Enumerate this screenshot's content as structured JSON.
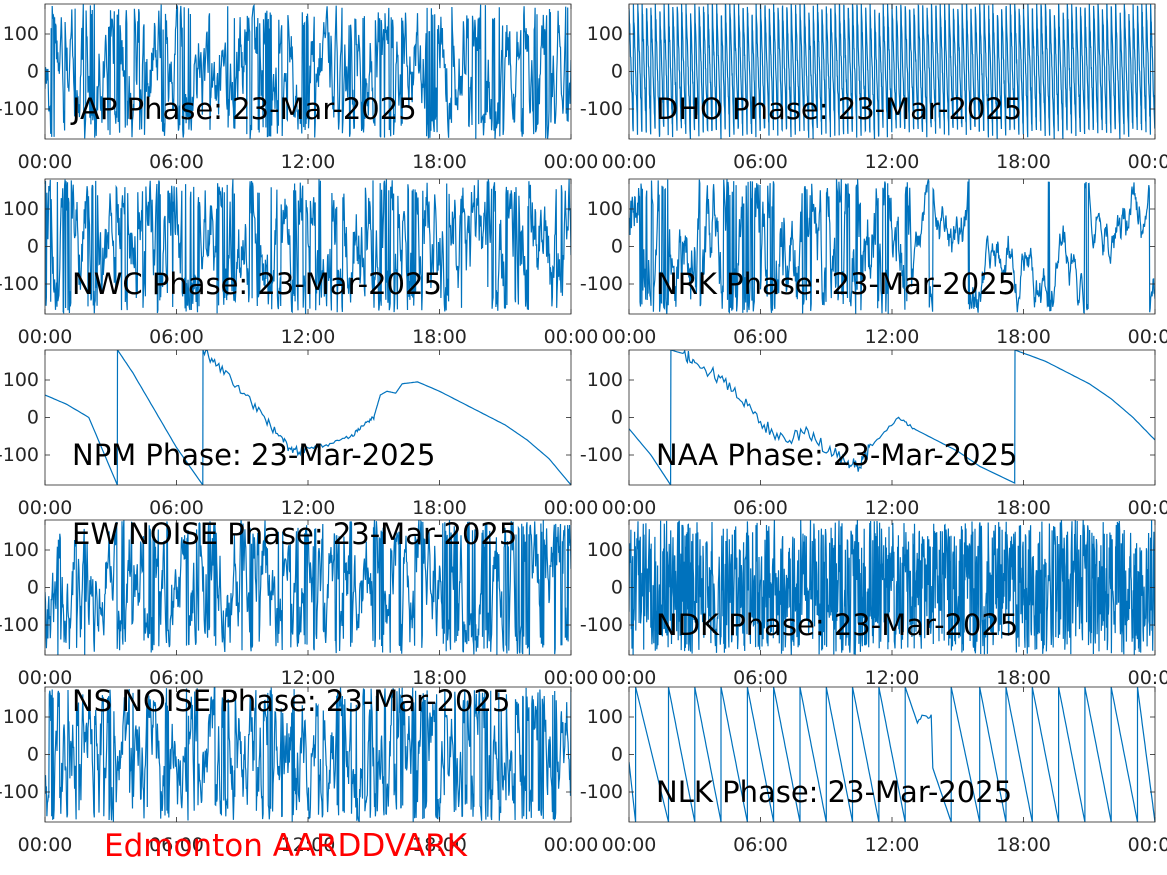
{
  "figure": {
    "footer_text": "Edmonton AARDDVARK",
    "footer_color": "#ff0000",
    "line_color": "#0072bd"
  },
  "chart_data": [
    {
      "type": "line",
      "title": "JAP Phase: 23-Mar-2025",
      "xlabel": "",
      "ylabel": "",
      "x_tick_labels": [
        "00:00",
        "06:00",
        "12:00",
        "18:00",
        "00:00"
      ],
      "xlim": [
        "00:00",
        "24:00"
      ],
      "y_ticks": [
        100,
        0,
        -100
      ],
      "y_tick_labels": [
        "100",
        "0",
        "-100"
      ],
      "ylim": [
        -180,
        180
      ],
      "pattern": "noise",
      "note": "dense random phase over full range"
    },
    {
      "type": "line",
      "title": "DHO Phase: 23-Mar-2025",
      "xlabel": "",
      "ylabel": "",
      "x_tick_labels": [
        "00:00",
        "06:00",
        "12:00",
        "18:00",
        "00:00"
      ],
      "xlim": [
        "00:00",
        "24:00"
      ],
      "y_ticks": [
        100,
        0,
        -100
      ],
      "y_tick_labels": [
        "100",
        "0",
        "-100"
      ],
      "ylim": [
        -180,
        180
      ],
      "pattern": "fast-wrap",
      "wraps": 120
    },
    {
      "type": "line",
      "title": "NWC Phase: 23-Mar-2025",
      "xlabel": "",
      "ylabel": "",
      "x_tick_labels": [
        "00:00",
        "06:00",
        "12:00",
        "18:00",
        "00:00"
      ],
      "xlim": [
        "00:00",
        "24:00"
      ],
      "y_ticks": [
        100,
        0,
        -100
      ],
      "y_tick_labels": [
        "100",
        "0",
        "-100"
      ],
      "ylim": [
        -180,
        180
      ],
      "pattern": "noise"
    },
    {
      "type": "line",
      "title": "NRK Phase: 23-Mar-2025",
      "xlabel": "",
      "ylabel": "",
      "x_tick_labels": [
        "00:00",
        "06:00",
        "12:00",
        "18:00",
        "00:00"
      ],
      "xlim": [
        "00:00",
        "24:00"
      ],
      "y_ticks": [
        100,
        0,
        -100
      ],
      "y_tick_labels": [
        "100",
        "0",
        "-100"
      ],
      "ylim": [
        -180,
        180
      ],
      "pattern": "noise-then-drift"
    },
    {
      "type": "line",
      "title": "NPM Phase: 23-Mar-2025",
      "xlabel": "",
      "ylabel": "",
      "x_tick_labels": [
        "00:00",
        "06:00",
        "12:00",
        "18:00",
        "00:00"
      ],
      "xlim": [
        "00:00",
        "24:00"
      ],
      "y_ticks": [
        100,
        0,
        -100
      ],
      "y_tick_labels": [
        "100",
        "0",
        "-100"
      ],
      "ylim": [
        -180,
        180
      ],
      "pattern": "points",
      "points": [
        [
          0,
          60
        ],
        [
          1,
          35
        ],
        [
          2,
          0
        ],
        [
          3.3,
          -180
        ],
        [
          3.31,
          180
        ],
        [
          4,
          120
        ],
        [
          5,
          20
        ],
        [
          6,
          -80
        ],
        [
          7.2,
          -180
        ],
        [
          7.21,
          180
        ],
        [
          8,
          130
        ],
        [
          9,
          70
        ],
        [
          10,
          0
        ],
        [
          10.8,
          -60
        ],
        [
          11.3,
          -90
        ],
        [
          12,
          -85
        ],
        [
          13,
          -70
        ],
        [
          14,
          -50
        ],
        [
          14.5,
          -20
        ],
        [
          15,
          0
        ],
        [
          15.3,
          60
        ],
        [
          15.6,
          70
        ],
        [
          16,
          65
        ],
        [
          16.3,
          90
        ],
        [
          17,
          95
        ],
        [
          18,
          70
        ],
        [
          19,
          40
        ],
        [
          20,
          10
        ],
        [
          21,
          -20
        ],
        [
          22,
          -60
        ],
        [
          23,
          -110
        ],
        [
          24,
          -180
        ]
      ],
      "noise": [
        [
          7.2,
          12,
          12
        ],
        [
          12,
          15,
          5
        ]
      ]
    },
    {
      "type": "line",
      "title": "NAA Phase: 23-Mar-2025",
      "xlabel": "",
      "ylabel": "",
      "x_tick_labels": [
        "00:00",
        "06:00",
        "12:00",
        "18:00",
        "00:00"
      ],
      "xlim": [
        "00:00",
        "24:00"
      ],
      "y_ticks": [
        100,
        0,
        -100
      ],
      "y_tick_labels": [
        "100",
        "0",
        "-100"
      ],
      "ylim": [
        -180,
        180
      ],
      "pattern": "points",
      "points": [
        [
          0,
          -30
        ],
        [
          1,
          -100
        ],
        [
          1.9,
          -180
        ],
        [
          1.91,
          180
        ],
        [
          2.5,
          170
        ],
        [
          3,
          150
        ],
        [
          4,
          110
        ],
        [
          5,
          60
        ],
        [
          6,
          -10
        ],
        [
          7,
          -60
        ],
        [
          8,
          -40
        ],
        [
          9,
          -80
        ],
        [
          10,
          -120
        ],
        [
          10.5,
          -130
        ],
        [
          11,
          -80
        ],
        [
          12.3,
          0
        ],
        [
          13,
          -30
        ],
        [
          14,
          -60
        ],
        [
          15,
          -90
        ],
        [
          16,
          -130
        ],
        [
          17.6,
          -175
        ],
        [
          17.61,
          180
        ],
        [
          19,
          150
        ],
        [
          20,
          120
        ],
        [
          21,
          90
        ],
        [
          22,
          50
        ],
        [
          23,
          0
        ],
        [
          24,
          -60
        ]
      ],
      "noise": [
        [
          2.5,
          11,
          18
        ],
        [
          11,
          13,
          4
        ]
      ]
    },
    {
      "type": "line",
      "title": "EW NOISE Phase: 23-Mar-2025",
      "xlabel": "",
      "ylabel": "",
      "x_tick_labels": [
        "00:00",
        "06:00",
        "12:00",
        "18:00",
        "00:00"
      ],
      "xlim": [
        "00:00",
        "24:00"
      ],
      "y_ticks": [
        100,
        0,
        -100
      ],
      "y_tick_labels": [
        "100",
        "0",
        "-100"
      ],
      "ylim": [
        -180,
        180
      ],
      "pattern": "noise"
    },
    {
      "type": "line",
      "title": "NDK Phase: 23-Mar-2025",
      "xlabel": "",
      "ylabel": "",
      "x_tick_labels": [
        "00:00",
        "06:00",
        "12:00",
        "18:00",
        "00:00"
      ],
      "xlim": [
        "00:00",
        "24:00"
      ],
      "y_ticks": [
        100,
        0,
        -100
      ],
      "y_tick_labels": [
        "100",
        "0",
        "-100"
      ],
      "ylim": [
        -180,
        180
      ],
      "pattern": "dense-noise"
    },
    {
      "type": "line",
      "title": "NS NOISE Phase: 23-Mar-2025",
      "xlabel": "",
      "ylabel": "",
      "x_tick_labels": [
        "00:00",
        "06:00",
        "12:00",
        "18:00",
        "00:00"
      ],
      "xlim": [
        "00:00",
        "24:00"
      ],
      "y_ticks": [
        100,
        0,
        -100
      ],
      "y_tick_labels": [
        "100",
        "0",
        "-100"
      ],
      "ylim": [
        -180,
        180
      ],
      "pattern": "noise"
    },
    {
      "type": "line",
      "title": "NLK Phase: 23-Mar-2025",
      "xlabel": "",
      "ylabel": "",
      "x_tick_labels": [
        "00:00",
        "06:00",
        "12:00",
        "18:00",
        "00:00"
      ],
      "xlim": [
        "00:00",
        "24:00"
      ],
      "y_ticks": [
        100,
        0,
        -100
      ],
      "y_tick_labels": [
        "100",
        "0",
        "-100"
      ],
      "ylim": [
        -180,
        180
      ],
      "pattern": "sawtooth",
      "wrap_times": [
        0.3,
        1.8,
        3.0,
        4.2,
        5.4,
        6.6,
        7.8,
        9.0,
        10.2,
        11.4,
        12.6,
        14.7,
        16.0,
        17.2,
        18.4,
        19.6,
        20.8,
        22.0,
        23.2
      ]
    }
  ]
}
